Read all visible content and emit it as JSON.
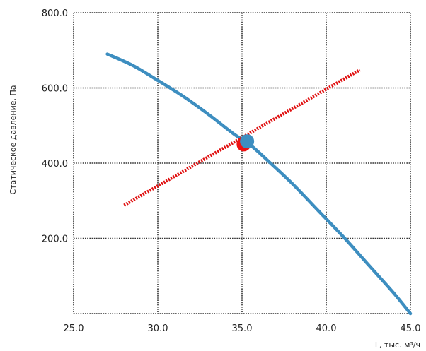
{
  "chart_data": {
    "type": "line",
    "title": "",
    "xlabel": "L, тыс. м³/ч",
    "ylabel": "Статическое давление, Па",
    "xlim": [
      25.0,
      45.0
    ],
    "ylim": [
      0,
      800.0
    ],
    "x_ticks": [
      "25.0",
      "30.0",
      "35.0",
      "40.0",
      "45.0"
    ],
    "y_ticks": [
      "200.0",
      "400.0",
      "600.0",
      "800.0"
    ],
    "x_tick_values": [
      25,
      30,
      35,
      40,
      45
    ],
    "y_tick_values": [
      200,
      400,
      600,
      800
    ],
    "grid": true,
    "grid_style": "dotted",
    "series": [
      {
        "style": "solid",
        "color": "#3d8ec0",
        "points": [
          [
            27.0,
            690
          ],
          [
            28.5,
            660
          ],
          [
            30.0,
            620
          ],
          [
            31.5,
            578
          ],
          [
            33.0,
            530
          ],
          [
            34.5,
            478
          ],
          [
            35.5,
            448
          ],
          [
            36.5,
            408
          ],
          [
            38.0,
            345
          ],
          [
            39.5,
            275
          ],
          [
            41.0,
            205
          ],
          [
            42.5,
            130
          ],
          [
            44.0,
            55
          ],
          [
            45.0,
            0
          ]
        ]
      },
      {
        "style": "dotted",
        "color": "#e01010",
        "points": [
          [
            28.0,
            288
          ],
          [
            42.0,
            648
          ]
        ]
      }
    ],
    "markers": [
      {
        "x": 35.1,
        "y": 450,
        "color": "#ee1111"
      },
      {
        "x": 35.3,
        "y": 458,
        "color": "#3d8ec0"
      }
    ]
  }
}
